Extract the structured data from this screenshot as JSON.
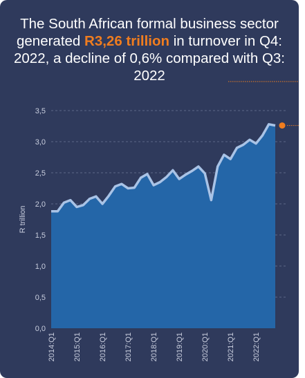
{
  "header": {
    "title_before": "The South African formal business sector generated ",
    "title_highlight": "R3,26 trillion",
    "title_after": " in turnover in Q4: 2022, a decline of 0,6% compared with Q3: 2022"
  },
  "colors": {
    "background": "#2f3a5c",
    "area_fill": "#2466a8",
    "line": "#a9c3e6",
    "highlight": "#f07d1f",
    "grid": "#6e7896"
  },
  "chart_data": {
    "type": "area",
    "ylabel": "R trillion",
    "ylim": [
      0,
      3.5
    ],
    "yticks": [
      "0,0",
      "0,5",
      "1,0",
      "1,5",
      "2,0",
      "2,5",
      "3,0",
      "3,5"
    ],
    "ytick_values": [
      0,
      0.5,
      1.0,
      1.5,
      2.0,
      2.5,
      3.0,
      3.5
    ],
    "grid": true,
    "x_tick_labels": [
      "2014:Q1",
      "2015:Q1",
      "2016:Q1",
      "2017:Q1",
      "2018:Q1",
      "2019:Q1",
      "2020:Q1",
      "2021:Q1",
      "2022:Q1"
    ],
    "x": [
      "2014:Q1",
      "2014:Q2",
      "2014:Q3",
      "2014:Q4",
      "2015:Q1",
      "2015:Q2",
      "2015:Q3",
      "2015:Q4",
      "2016:Q1",
      "2016:Q2",
      "2016:Q3",
      "2016:Q4",
      "2017:Q1",
      "2017:Q2",
      "2017:Q3",
      "2017:Q4",
      "2018:Q1",
      "2018:Q2",
      "2018:Q3",
      "2018:Q4",
      "2019:Q1",
      "2019:Q2",
      "2019:Q3",
      "2019:Q4",
      "2020:Q1",
      "2020:Q2",
      "2020:Q3",
      "2020:Q4",
      "2021:Q1",
      "2021:Q2",
      "2021:Q3",
      "2021:Q4",
      "2022:Q1",
      "2022:Q2",
      "2022:Q3",
      "2022:Q4"
    ],
    "values": [
      1.88,
      1.88,
      2.02,
      2.06,
      1.95,
      1.98,
      2.08,
      2.12,
      2.0,
      2.13,
      2.28,
      2.32,
      2.25,
      2.26,
      2.42,
      2.48,
      2.3,
      2.35,
      2.43,
      2.54,
      2.4,
      2.47,
      2.53,
      2.6,
      2.49,
      2.06,
      2.6,
      2.79,
      2.72,
      2.9,
      2.95,
      3.03,
      2.97,
      3.1,
      3.28,
      3.26
    ],
    "highlight_point": "2022:Q4"
  }
}
